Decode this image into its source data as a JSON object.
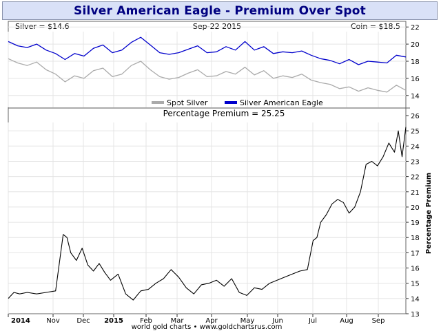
{
  "title": "Silver American Eagle - Premium Over Spot",
  "footer": "world gold charts • www.goldchartsrus.com",
  "colors": {
    "title_bg": "#d9e1f7",
    "title_text": "#000080",
    "spot": "#aaaaaa",
    "eagle": "#0000cc",
    "premium": "#000000",
    "grid": "#e4e4e4"
  },
  "chart_data": [
    {
      "type": "line",
      "header": {
        "left": "Silver = $14.6",
        "center": "Sep-22  2015",
        "right": "Coin = $18.5"
      },
      "ylim": [
        13.5,
        22.5
      ],
      "yticks": [
        14,
        16,
        18,
        20,
        22
      ],
      "xlim": [
        0,
        21
      ],
      "legend_position": "bottom",
      "series": [
        {
          "name": "Spot Silver",
          "x": [
            0,
            0.5,
            1,
            1.5,
            2,
            2.5,
            3,
            3.5,
            4,
            4.5,
            5,
            5.5,
            6,
            6.5,
            7,
            7.5,
            8,
            8.5,
            9,
            9.5,
            10,
            10.5,
            11,
            11.5,
            12,
            12.5,
            13,
            13.5,
            14,
            14.5,
            15,
            15.5,
            16,
            16.5,
            17,
            17.5,
            18,
            18.5,
            19,
            19.5,
            20,
            20.5,
            21
          ],
          "y": [
            18.3,
            17.8,
            17.5,
            17.9,
            17.0,
            16.5,
            15.6,
            16.3,
            16.0,
            16.9,
            17.2,
            16.2,
            16.5,
            17.5,
            18.0,
            17.0,
            16.2,
            15.9,
            16.1,
            16.6,
            17.0,
            16.2,
            16.3,
            16.8,
            16.5,
            17.3,
            16.4,
            16.9,
            16.0,
            16.3,
            16.1,
            16.5,
            15.8,
            15.5,
            15.3,
            14.8,
            15.0,
            14.5,
            14.9,
            14.6,
            14.4,
            15.2,
            14.6
          ]
        },
        {
          "name": "Silver American Eagle",
          "x": [
            0,
            0.5,
            1,
            1.5,
            2,
            2.5,
            3,
            3.5,
            4,
            4.5,
            5,
            5.5,
            6,
            6.5,
            7,
            7.5,
            8,
            8.5,
            9,
            9.5,
            10,
            10.5,
            11,
            11.5,
            12,
            12.5,
            13,
            13.5,
            14,
            14.5,
            15,
            15.5,
            16,
            16.5,
            17,
            17.5,
            18,
            18.5,
            19,
            19.5,
            20,
            20.5,
            21
          ],
          "y": [
            20.3,
            19.8,
            19.6,
            20.0,
            19.3,
            18.9,
            18.2,
            18.9,
            18.6,
            19.5,
            19.9,
            19.0,
            19.3,
            20.2,
            20.8,
            19.9,
            19.0,
            18.8,
            19.0,
            19.4,
            19.8,
            19.0,
            19.1,
            19.7,
            19.3,
            20.3,
            19.3,
            19.7,
            18.9,
            19.1,
            19.0,
            19.2,
            18.7,
            18.3,
            18.1,
            17.7,
            18.2,
            17.6,
            18.0,
            17.9,
            17.8,
            18.7,
            18.5
          ]
        }
      ]
    },
    {
      "type": "line",
      "title": "Percentage Premium = 25.25",
      "ylabel": "Percentage Premium",
      "ylim": [
        13,
        26
      ],
      "yticks": [
        13,
        14,
        15,
        16,
        17,
        18,
        19,
        20,
        21,
        22,
        23,
        24,
        25,
        26
      ],
      "xlim": [
        0,
        21
      ],
      "xticks": [
        "2014",
        "Nov",
        "Dec",
        "2015",
        "Feb",
        "Mar",
        "Apr",
        "May",
        "Jun",
        "Jul",
        "Aug",
        "Sep"
      ],
      "series": [
        {
          "name": "Percentage Premium",
          "x": [
            0,
            0.3,
            0.6,
            1,
            1.5,
            2,
            2.5,
            2.9,
            3.1,
            3.3,
            3.6,
            3.9,
            4.2,
            4.5,
            4.8,
            5.1,
            5.4,
            5.8,
            6.2,
            6.6,
            7.0,
            7.4,
            7.8,
            8.2,
            8.6,
            9.0,
            9.4,
            9.8,
            10.2,
            10.6,
            11.0,
            11.4,
            11.8,
            12.2,
            12.6,
            13.0,
            13.4,
            13.8,
            14.2,
            14.6,
            15.0,
            15.4,
            15.8,
            16.1,
            16.3,
            16.5,
            16.8,
            17.1,
            17.4,
            17.7,
            18.0,
            18.3,
            18.6,
            18.9,
            19.2,
            19.5,
            19.8,
            20.1,
            20.4,
            20.6,
            20.8,
            21
          ],
          "y": [
            14.0,
            14.4,
            14.3,
            14.4,
            14.3,
            14.4,
            14.5,
            18.2,
            18.0,
            17.0,
            16.5,
            17.3,
            16.2,
            15.8,
            16.3,
            15.7,
            15.2,
            15.6,
            14.3,
            13.9,
            14.5,
            14.6,
            15.0,
            15.3,
            15.9,
            15.4,
            14.7,
            14.3,
            14.9,
            15.0,
            15.2,
            14.8,
            15.3,
            14.4,
            14.2,
            14.7,
            14.6,
            15.0,
            15.2,
            15.4,
            15.6,
            15.8,
            15.9,
            17.8,
            18.0,
            19.0,
            19.5,
            20.2,
            20.5,
            20.3,
            19.6,
            20.0,
            21.0,
            22.8,
            23.0,
            22.7,
            23.3,
            24.2,
            23.6,
            25.0,
            23.3,
            25.25
          ]
        }
      ]
    }
  ]
}
